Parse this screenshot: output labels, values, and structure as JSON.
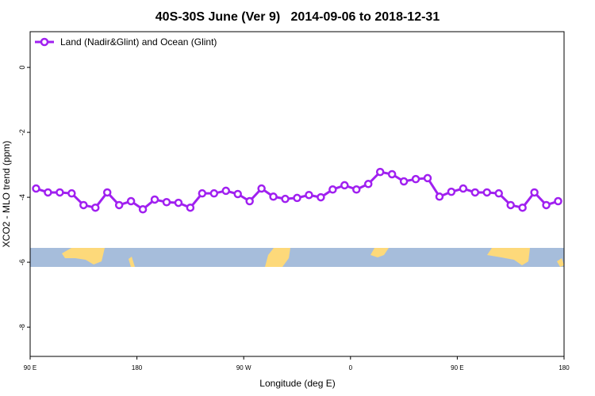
{
  "chart_data": {
    "type": "line",
    "title": "40S-30S June (Ver 9)   2014-09-06 to 2018-12-31",
    "x_label": "Longitude (deg E)",
    "y_label": "XCO2 - MLO trend (ppm)",
    "legend": "top-left",
    "x": [
      95,
      105,
      115,
      125,
      135,
      145,
      155,
      165,
      175,
      185,
      195,
      205,
      215,
      225,
      235,
      245,
      255,
      265,
      275,
      285,
      295,
      305,
      315,
      325,
      335,
      345,
      355,
      365,
      375,
      385,
      395,
      405,
      415,
      425,
      435,
      445,
      455,
      465,
      475,
      485,
      495,
      505,
      515,
      525,
      535
    ],
    "series": [
      {
        "name": "Land (Nadir&Glint) and Ocean (Glint)",
        "color": "#a020f0",
        "values": [
          -3.73,
          -3.85,
          -3.85,
          -3.88,
          -4.24,
          -4.32,
          -3.85,
          -4.24,
          -4.12,
          -4.37,
          -4.07,
          -4.15,
          -4.17,
          -4.32,
          -3.88,
          -3.88,
          -3.8,
          -3.9,
          -4.12,
          -3.73,
          -3.98,
          -4.05,
          -4.02,
          -3.93,
          -4.0,
          -3.76,
          -3.63,
          -3.76,
          -3.59,
          -3.22,
          -3.29,
          -3.51,
          -3.44,
          -3.41,
          -3.98,
          -3.83,
          -3.73,
          -3.85,
          -3.85,
          -3.88,
          -4.24,
          -4.32,
          -3.85,
          -4.24,
          -4.12
        ]
      }
    ],
    "xlim": [
      90,
      540
    ],
    "xticks": [
      {
        "value": 90,
        "label": "90 E"
      },
      180,
      {
        "value": 270,
        "label": "90 W"
      },
      {
        "value": 360,
        "label": "0"
      },
      {
        "value": 450,
        "label": "90 E"
      },
      {
        "value": 540,
        "label": "180"
      }
    ],
    "ylim": [
      -8.9,
      1.1
    ],
    "yticks": [
      0,
      -2,
      -4,
      -6,
      -8
    ]
  }
}
